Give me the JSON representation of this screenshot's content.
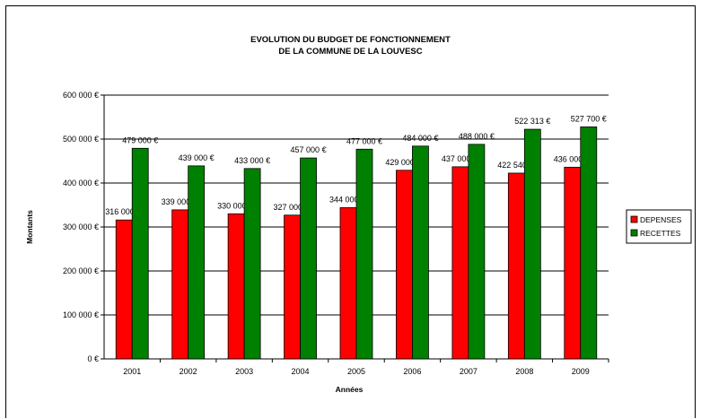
{
  "chart_data": {
    "type": "bar",
    "title": [
      "EVOLUTION DU BUDGET DE FONCTIONNEMENT",
      "DE LA COMMUNE DE LA LOUVESC"
    ],
    "xlabel": "Années",
    "ylabel": "Montants",
    "categories": [
      "2001",
      "2002",
      "2003",
      "2004",
      "2005",
      "2006",
      "2007",
      "2008",
      "2009"
    ],
    "series": [
      {
        "name": "DEPENSES",
        "color": "#ff0000",
        "values": [
          316000,
          339000,
          330000,
          327000,
          344000,
          429000,
          437000,
          422540,
          436000
        ],
        "labels": [
          "316 000 €",
          "339 000 €",
          "330 000 €",
          "327 000 €",
          "344 000 €",
          "429 000 €",
          "437 000 €",
          "422 540 €",
          "436 000 €"
        ]
      },
      {
        "name": "RECETTES",
        "color": "#008000",
        "values": [
          479000,
          439000,
          433000,
          457000,
          477000,
          484000,
          488000,
          522313,
          527700
        ],
        "labels": [
          "479 000 €",
          "439 000 €",
          "433 000 €",
          "457 000 €",
          "477 000 €",
          "484 000 €",
          "488 000 €",
          "522 313 €",
          "527 700 €"
        ]
      }
    ],
    "ylim": [
      0,
      600000
    ],
    "yticks": [
      0,
      100000,
      200000,
      300000,
      400000,
      500000,
      600000
    ],
    "ytick_labels": [
      "0 €",
      "100 000 €",
      "200 000 €",
      "300 000 €",
      "400 000 €",
      "500 000 €",
      "600 000 €"
    ],
    "grid": true,
    "legend_position": "right"
  }
}
